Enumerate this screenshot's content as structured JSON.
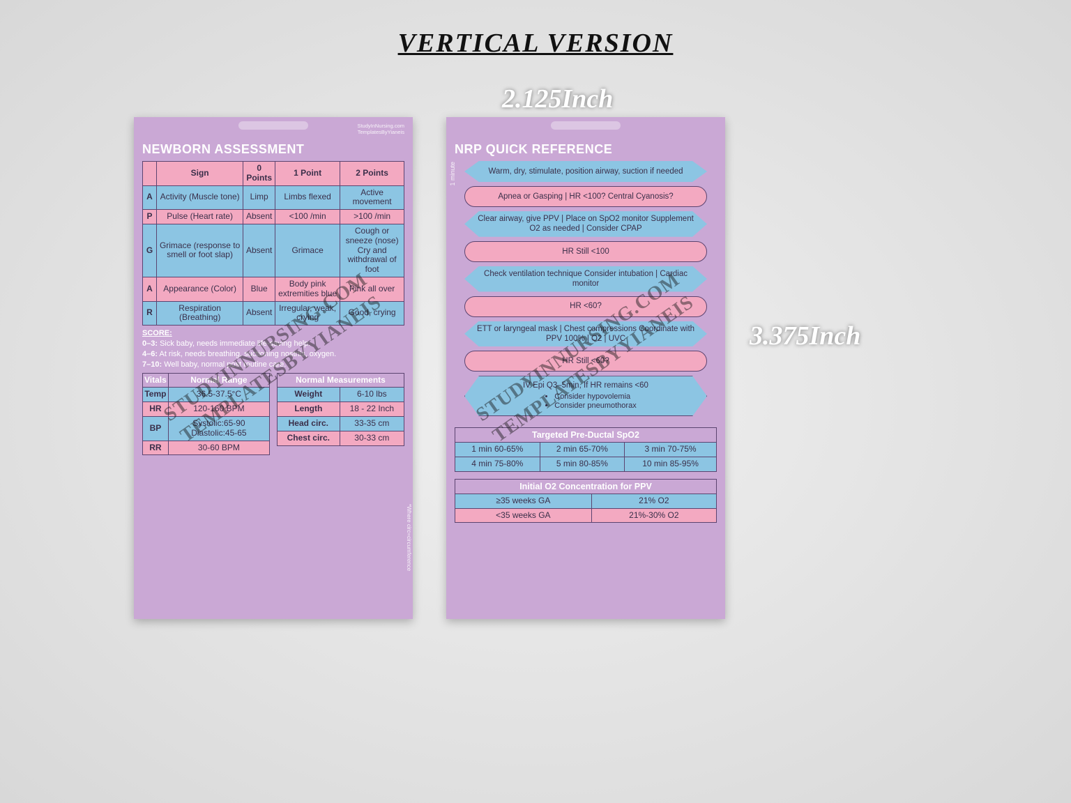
{
  "page": {
    "title": "VERTICAL VERSION"
  },
  "dims": {
    "width": "2.125Inch",
    "height": "3.375Inch"
  },
  "colors": {
    "card_bg": "#caa8d5",
    "blue": "#8cc5e3",
    "pink": "#f3a9c1",
    "border": "#5b4470",
    "text_dark": "#3a2f4a"
  },
  "brand": {
    "line1": "StudyInNursing.com",
    "line2": "TemplatesByYianeis"
  },
  "left": {
    "title": "NEWBORN ASSESSMENT",
    "apgar": {
      "headers": [
        "",
        "Sign",
        "0 Points",
        "1 Point",
        "2 Points"
      ],
      "rows": [
        {
          "letter": "A",
          "sign": "Activity (Muscle tone)",
          "p0": "Limp",
          "p1": "Limbs flexed",
          "p2": "Active movement",
          "color": "blue"
        },
        {
          "letter": "P",
          "sign": "Pulse (Heart rate)",
          "p0": "Absent",
          "p1": "<100 /min",
          "p2": ">100 /min",
          "color": "pink"
        },
        {
          "letter": "G",
          "sign": "Grimace (response to smell or foot slap)",
          "p0": "Absent",
          "p1": "Grimace",
          "p2": "Cough or sneeze (nose)\nCry and withdrawal of foot",
          "color": "blue"
        },
        {
          "letter": "A",
          "sign": "Appearance (Color)",
          "p0": "Blue",
          "p1": "Body pink extremities blue",
          "p2": "Pink all over",
          "color": "pink"
        },
        {
          "letter": "R",
          "sign": "Respiration (Breathing)",
          "p0": "Absent",
          "p1": "Irregular, weak, crying",
          "p2": "Good, crying",
          "color": "blue"
        }
      ]
    },
    "score": {
      "hdr": "SCORE:",
      "lines": [
        "0–3: Sick baby, needs immediate life-saving help.",
        "4–6: At risk, needs breathing, suctioning nostrils, oxygen.",
        "7–10: Well baby, normal post routine care."
      ]
    },
    "vitals": {
      "headers": [
        "Vitals",
        "Normal Range"
      ],
      "rows": [
        {
          "k": "Temp",
          "v": "36.5-37.5°C",
          "color": "blue"
        },
        {
          "k": "HR",
          "v": "120-160 BPM",
          "color": "pink"
        },
        {
          "k": "BP",
          "v": "Systolic:65-90 Diastolic:45-65",
          "color": "blue"
        },
        {
          "k": "RR",
          "v": "30-60 BPM",
          "color": "pink"
        }
      ]
    },
    "meas": {
      "headers": [
        "Normal Measurements",
        ""
      ],
      "rows": [
        {
          "k": "Weight",
          "v": "6-10 lbs",
          "color": "blue"
        },
        {
          "k": "Length",
          "v": "18 - 22 Inch",
          "color": "pink"
        },
        {
          "k": "Head circ.",
          "v": "33-35 cm",
          "color": "blue"
        },
        {
          "k": "Chest circ.",
          "v": "30-33 cm",
          "color": "pink"
        }
      ]
    },
    "side_note": "*Where circ=circumference"
  },
  "right": {
    "title": "NRP QUICK REFERENCE",
    "one_min": "1 minute",
    "flow": [
      {
        "shape": "hex",
        "color": "blue",
        "text": "Warm, dry, stimulate, position airway, suction if needed"
      },
      {
        "shape": "oval",
        "color": "pink",
        "text": "Apnea or Gasping | HR <100? Central Cyanosis?"
      },
      {
        "shape": "hex",
        "color": "blue",
        "text": "Clear airway, give PPV | Place on SpO2 monitor Supplement O2 as needed | Consider CPAP"
      },
      {
        "shape": "oval",
        "color": "pink",
        "text": "HR Still <100"
      },
      {
        "shape": "hex",
        "color": "blue",
        "text": "Check ventilation technique Consider intubation | Cardiac monitor"
      },
      {
        "shape": "oval",
        "color": "pink",
        "text": "HR <60?"
      },
      {
        "shape": "hex",
        "color": "blue",
        "text": "ETT or laryngeal mask | Chest compressions Coordinate with PPV 100% | O2 | UVC"
      },
      {
        "shape": "oval",
        "color": "pink",
        "text": "HR Still <60?"
      },
      {
        "shape": "bullets",
        "color": "blue",
        "text": "IV Epi Q3–5min, If HR remains <60",
        "bullets": [
          "Consider hypovolemia",
          "Consider pneumothorax"
        ]
      }
    ],
    "spo2": {
      "title": "Targeted Pre-Ductal SpO2",
      "cells": [
        [
          "1 min 60-65%",
          "2 min 65-70%",
          "3 min 70-75%"
        ],
        [
          "4 min 75-80%",
          "5 min 80-85%",
          "10 min 85-95%"
        ]
      ]
    },
    "o2": {
      "title": "Initial O2 Concentration for PPV",
      "rows": [
        {
          "k": "≥35 weeks GA",
          "v": "21% O2",
          "color": "blue"
        },
        {
          "k": "<35 weeks GA",
          "v": "21%-30% O2",
          "color": "pink"
        }
      ]
    }
  },
  "watermark": {
    "line1": "STUDYINNURSING.COM",
    "line2": "TEMPLATESBYYIANEIS"
  }
}
